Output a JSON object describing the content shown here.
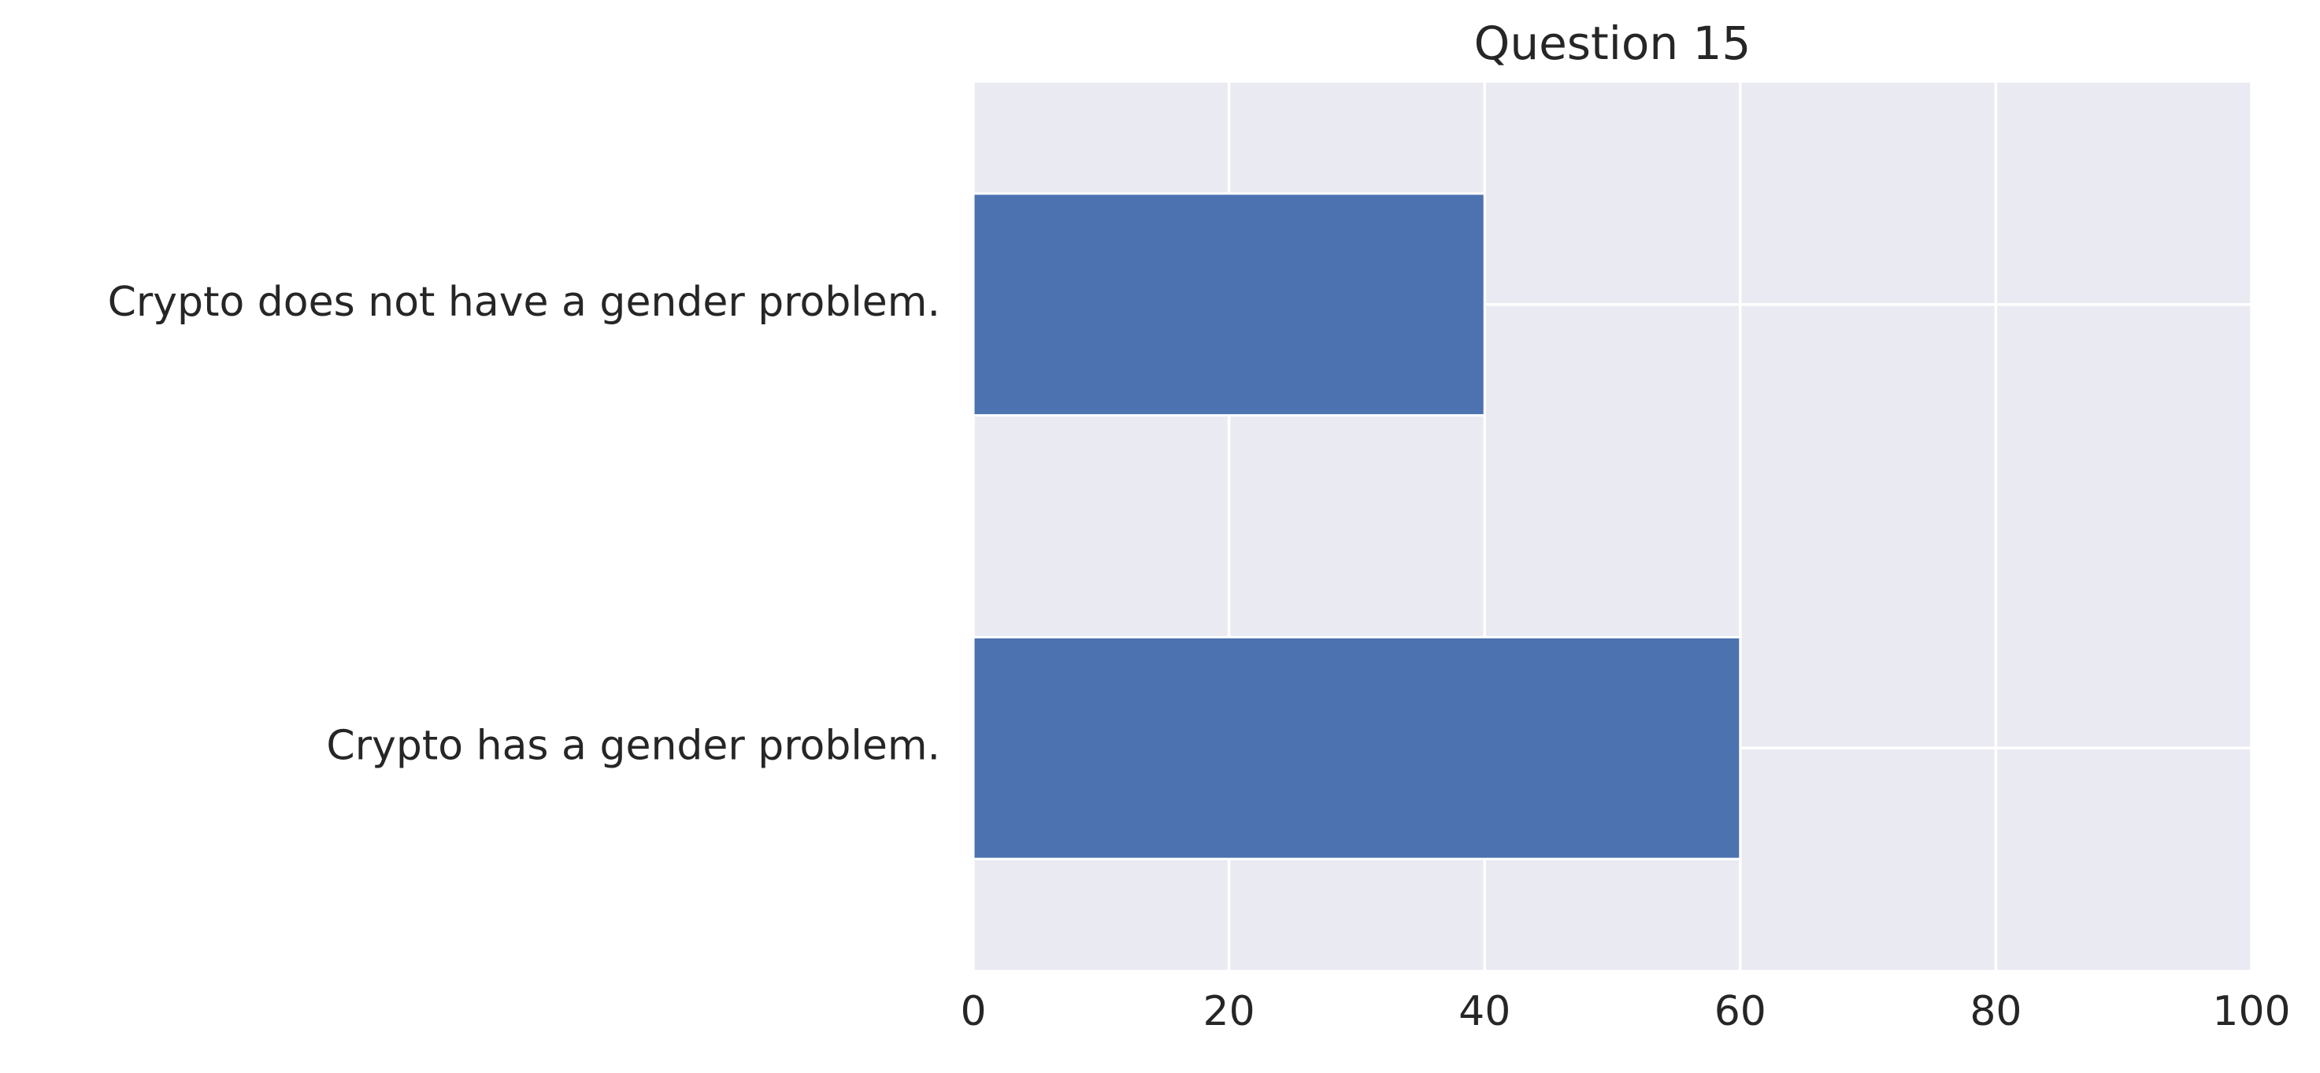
{
  "chart_data": {
    "type": "bar",
    "orientation": "horizontal",
    "title": "Question 15",
    "xlabel": "",
    "ylabel": "",
    "categories": [
      "Crypto does not have a gender problem.",
      "Crypto has a gender problem."
    ],
    "values": [
      40,
      60
    ],
    "xlim": [
      0,
      100
    ],
    "xticks": [
      0,
      20,
      40,
      60,
      80,
      100
    ],
    "grid": true,
    "legend": "none",
    "colors": {
      "bar": "#4c72b0",
      "plot_background": "#eaeaf2",
      "grid": "#ffffff",
      "text": "#262626"
    }
  }
}
